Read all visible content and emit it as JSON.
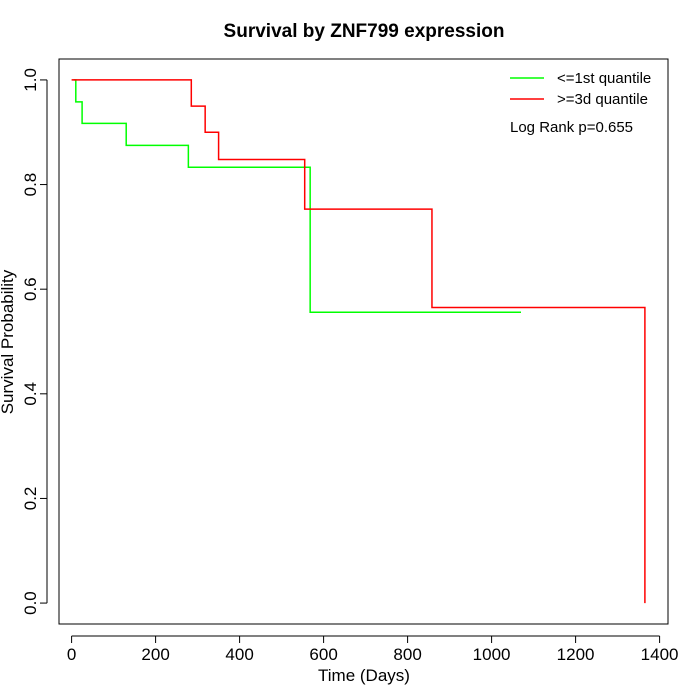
{
  "chart_data": {
    "type": "line",
    "title": "Survival by ZNF799 expression",
    "xlabel": "Time (Days)",
    "ylabel": "Survival Probability",
    "xlim": [
      -30,
      1420
    ],
    "ylim": [
      -0.04,
      1.04
    ],
    "x_ticks": [
      0,
      200,
      400,
      600,
      800,
      1000,
      1200,
      1400
    ],
    "y_ticks": [
      0.0,
      0.2,
      0.4,
      0.6,
      0.8,
      1.0
    ],
    "y_tick_labels": [
      "0.0",
      "0.2",
      "0.4",
      "0.6",
      "0.8",
      "1.0"
    ],
    "legend_position": "top-right",
    "annotation": "Log Rank p=0.655",
    "series": [
      {
        "name": "<=1st quantile",
        "color": "#00ff00",
        "x": [
          5,
          10,
          25,
          130,
          278,
          568,
          1070
        ],
        "y": [
          1.0,
          0.958,
          0.917,
          0.875,
          0.833,
          0.556,
          0.556
        ]
      },
      {
        "name": ">=3d quantile",
        "color": "#ff0000",
        "x": [
          0,
          285,
          318,
          350,
          555,
          858,
          1365,
          1365
        ],
        "y": [
          1.0,
          0.95,
          0.9,
          0.848,
          0.753,
          0.565,
          0.565,
          0.0
        ]
      }
    ]
  }
}
